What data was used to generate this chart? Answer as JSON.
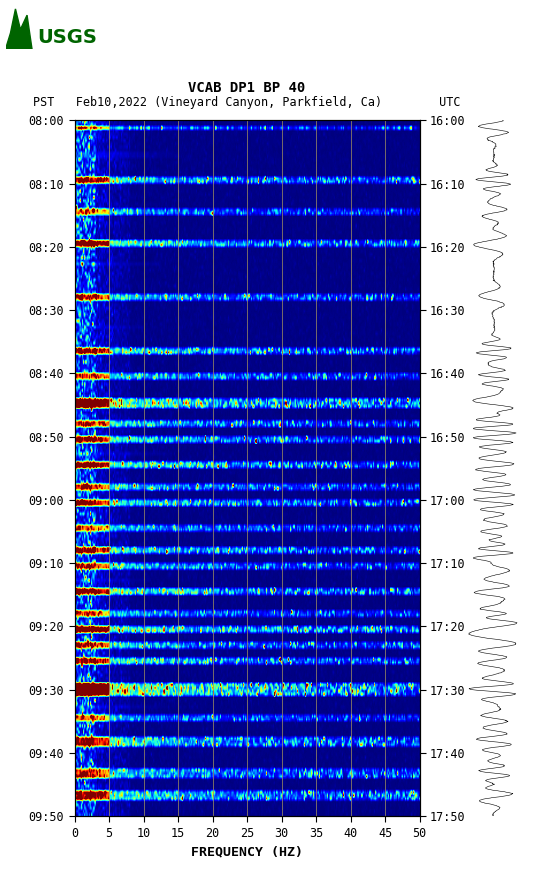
{
  "title_line1": "VCAB DP1 BP 40",
  "title_line2": "PST   Feb10,2022 (Vineyard Canyon, Parkfield, Ca)        UTC",
  "xlabel": "FREQUENCY (HZ)",
  "freq_min": 0,
  "freq_max": 50,
  "freq_ticks": [
    0,
    5,
    10,
    15,
    20,
    25,
    30,
    35,
    40,
    45,
    50
  ],
  "time_ticks_left": [
    "08:00",
    "08:10",
    "08:20",
    "08:30",
    "08:40",
    "08:50",
    "09:00",
    "09:10",
    "09:20",
    "09:30",
    "09:40",
    "09:50"
  ],
  "time_ticks_right": [
    "16:00",
    "16:10",
    "16:20",
    "16:30",
    "16:40",
    "16:50",
    "17:00",
    "17:10",
    "17:20",
    "17:30",
    "17:40",
    "17:50"
  ],
  "n_time": 220,
  "n_freq": 300,
  "background_color": "#ffffff",
  "spectrogram_cmap": "jet",
  "grid_color": "#a09060",
  "grid_freq_positions": [
    5,
    10,
    15,
    20,
    25,
    30,
    35,
    40,
    45
  ],
  "usgs_color": "#006400",
  "font_color": "#000000",
  "figsize": [
    5.52,
    8.92
  ],
  "dpi": 100
}
